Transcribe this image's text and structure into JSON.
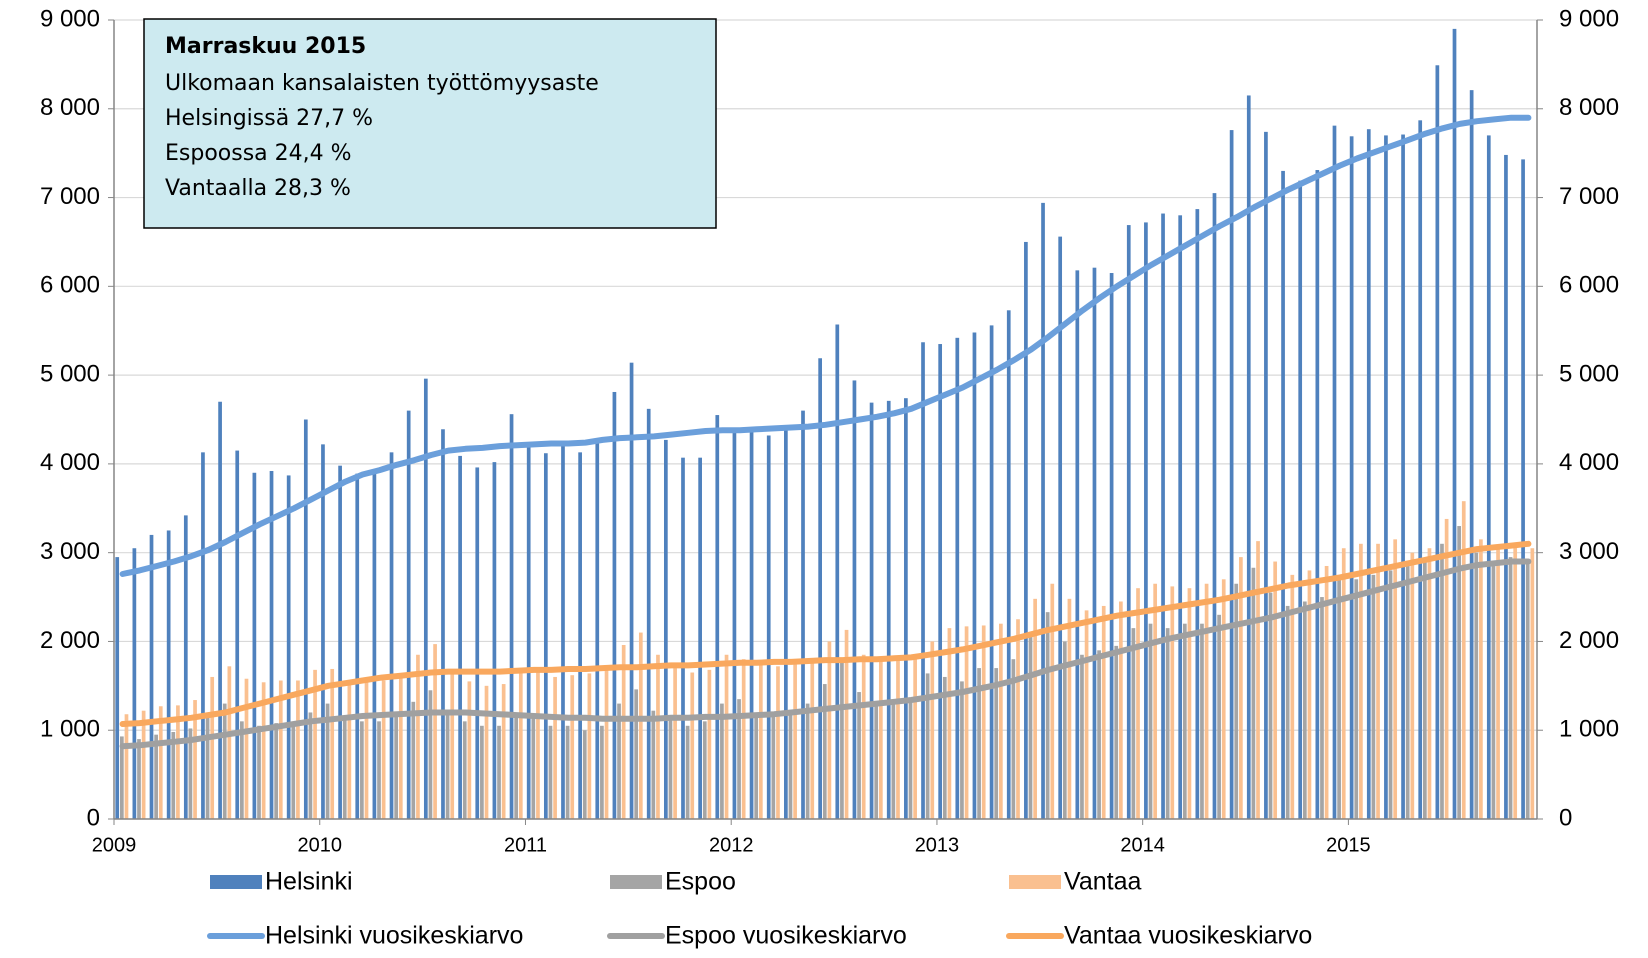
{
  "chart_data": {
    "type": "bar",
    "annotation": {
      "title": "Marraskuu 2015",
      "lines": [
        "Ulkomaan kansalaisten työttömyysaste",
        "Helsingissä 27,7 %",
        "Espoossa 24,4 %",
        "Vantaalla 28,3 %"
      ]
    },
    "categories": [
      "2009",
      null,
      null,
      null,
      null,
      null,
      null,
      null,
      null,
      null,
      null,
      null,
      "2010",
      null,
      null,
      null,
      null,
      null,
      null,
      null,
      null,
      null,
      null,
      null,
      "2011",
      null,
      null,
      null,
      null,
      null,
      null,
      null,
      null,
      null,
      null,
      null,
      "2012",
      null,
      null,
      null,
      null,
      null,
      null,
      null,
      null,
      null,
      null,
      null,
      "2013",
      null,
      null,
      null,
      null,
      null,
      null,
      null,
      null,
      null,
      null,
      null,
      "2014",
      null,
      null,
      null,
      null,
      null,
      null,
      null,
      null,
      null,
      null,
      null,
      "2015",
      null,
      null,
      null,
      null,
      null,
      null,
      null,
      null,
      null,
      null
    ],
    "ylim": [
      0,
      9000
    ],
    "yticks": [
      0,
      {
        "value": 1000,
        "label": "1 000"
      },
      {
        "value": 2000,
        "label": "2 000"
      },
      {
        "value": 3000,
        "label": "3 000"
      },
      {
        "value": 4000,
        "label": "4 000"
      },
      {
        "value": 5000,
        "label": "5 000"
      },
      {
        "value": 6000,
        "label": "6 000"
      },
      {
        "value": 7000,
        "label": "7 000"
      },
      {
        "value": 8000,
        "label": "8 000"
      },
      {
        "value": 9000,
        "label": "9 000"
      }
    ],
    "y2lim": [
      0,
      9000
    ],
    "y2ticks": [
      0,
      {
        "value": 1000,
        "label": "1 000"
      },
      {
        "value": 2000,
        "label": "2 000"
      },
      {
        "value": 3000,
        "label": "3 000"
      },
      {
        "value": 4000,
        "label": "4 000"
      },
      {
        "value": 5000,
        "label": "5 000"
      },
      {
        "value": 6000,
        "label": "6 000"
      },
      {
        "value": 7000,
        "label": "7 000"
      },
      {
        "value": 8000,
        "label": "8 000"
      },
      {
        "value": 9000,
        "label": "9 000"
      }
    ],
    "grid": true,
    "series": [
      {
        "name": "Helsinki",
        "type": "bar",
        "color": "#4f81bd",
        "values": [
          2950,
          3050,
          3200,
          3250,
          3420,
          4130,
          4700,
          4150,
          3900,
          3920,
          3870,
          4500,
          4220,
          3980,
          3890,
          3900,
          4130,
          4600,
          4960,
          4390,
          4090,
          3960,
          4020,
          4560,
          4220,
          4120,
          4220,
          4130,
          4280,
          4810,
          5140,
          4620,
          4270,
          4070,
          4070,
          4550,
          4400,
          4390,
          4320,
          4420,
          4600,
          5190,
          5570,
          4940,
          4690,
          4710,
          4740,
          5370,
          5350,
          5420,
          5480,
          5560,
          5730,
          6500,
          6940,
          6560,
          6180,
          6210,
          6150,
          6690,
          6720,
          6820,
          6800,
          6870,
          7050,
          7760,
          8150,
          7740,
          7300,
          7190,
          7310,
          7810,
          7690,
          7770,
          7700,
          7710,
          7870,
          8490,
          8900,
          8210,
          7700,
          7480,
          7430
        ]
      },
      {
        "name": "Espoo",
        "type": "bar",
        "color": "#a5a5a5",
        "values": [
          930,
          900,
          950,
          980,
          1020,
          1180,
          1300,
          1100,
          1050,
          1080,
          1050,
          1200,
          1300,
          1150,
          1100,
          1100,
          1150,
          1320,
          1450,
          1200,
          1100,
          1050,
          1050,
          1150,
          1150,
          1050,
          1050,
          1000,
          1050,
          1300,
          1460,
          1220,
          1150,
          1050,
          1100,
          1300,
          1350,
          1200,
          1150,
          1200,
          1300,
          1520,
          1780,
          1430,
          1300,
          1300,
          1350,
          1640,
          1600,
          1550,
          1700,
          1700,
          1800,
          2100,
          2330,
          2000,
          1850,
          1900,
          1950,
          2150,
          2200,
          2150,
          2200,
          2200,
          2300,
          2650,
          2830,
          2550,
          2400,
          2450,
          2500,
          2700,
          2700,
          2750,
          2800,
          2850,
          2900,
          3100,
          3300,
          3000,
          2900,
          2950,
          2900
        ]
      },
      {
        "name": "Vantaa",
        "type": "bar",
        "color": "#fac090",
        "values": [
          1180,
          1220,
          1270,
          1280,
          1340,
          1600,
          1720,
          1580,
          1540,
          1560,
          1560,
          1680,
          1690,
          1560,
          1560,
          1560,
          1640,
          1850,
          1970,
          1650,
          1550,
          1500,
          1520,
          1700,
          1680,
          1600,
          1620,
          1640,
          1700,
          1960,
          2100,
          1850,
          1700,
          1650,
          1680,
          1850,
          1800,
          1750,
          1720,
          1740,
          1800,
          2000,
          2130,
          1850,
          1800,
          1800,
          1850,
          2000,
          2150,
          2170,
          2180,
          2200,
          2250,
          2480,
          2650,
          2480,
          2350,
          2400,
          2450,
          2600,
          2650,
          2620,
          2600,
          2650,
          2700,
          2950,
          3130,
          2900,
          2750,
          2800,
          2850,
          3050,
          3100,
          3100,
          3150,
          3000,
          3050,
          3380,
          3580,
          3150,
          3050,
          3100,
          3050
        ]
      },
      {
        "name": "Helsinki vuosikeskiarvo",
        "type": "line",
        "axis": "y2",
        "color": "#6b9fdb",
        "values": [
          2760,
          2800,
          2850,
          2900,
          2960,
          3030,
          3120,
          3220,
          3320,
          3410,
          3500,
          3600,
          3700,
          3800,
          3880,
          3930,
          3990,
          4040,
          4100,
          4150,
          4170,
          4180,
          4200,
          4210,
          4220,
          4230,
          4230,
          4240,
          4270,
          4290,
          4300,
          4310,
          4330,
          4350,
          4370,
          4380,
          4380,
          4390,
          4400,
          4410,
          4420,
          4440,
          4470,
          4500,
          4530,
          4570,
          4620,
          4700,
          4780,
          4860,
          4960,
          5060,
          5170,
          5290,
          5430,
          5580,
          5730,
          5870,
          6000,
          6120,
          6240,
          6350,
          6460,
          6570,
          6680,
          6780,
          6890,
          6990,
          7090,
          7180,
          7270,
          7360,
          7440,
          7510,
          7580,
          7650,
          7720,
          7780,
          7830,
          7860,
          7880,
          7900,
          7900
        ]
      },
      {
        "name": "Espoo vuosikeskiarvo",
        "type": "line",
        "axis": "y2",
        "color": "#a0a0a0",
        "values": [
          820,
          830,
          850,
          870,
          890,
          920,
          950,
          980,
          1010,
          1040,
          1070,
          1100,
          1120,
          1140,
          1160,
          1170,
          1180,
          1190,
          1200,
          1200,
          1200,
          1190,
          1180,
          1170,
          1160,
          1150,
          1140,
          1140,
          1130,
          1130,
          1130,
          1130,
          1140,
          1140,
          1150,
          1150,
          1160,
          1170,
          1180,
          1200,
          1220,
          1240,
          1260,
          1280,
          1300,
          1320,
          1340,
          1370,
          1400,
          1430,
          1470,
          1510,
          1560,
          1620,
          1680,
          1730,
          1780,
          1830,
          1880,
          1930,
          1980,
          2030,
          2070,
          2110,
          2150,
          2190,
          2230,
          2270,
          2320,
          2370,
          2420,
          2470,
          2520,
          2570,
          2620,
          2670,
          2720,
          2770,
          2820,
          2860,
          2880,
          2900,
          2900
        ]
      },
      {
        "name": "Vantaa vuosikeskiarvo",
        "type": "line",
        "axis": "y2",
        "color": "#f9a85e",
        "values": [
          1070,
          1080,
          1100,
          1120,
          1140,
          1170,
          1200,
          1250,
          1300,
          1350,
          1400,
          1450,
          1500,
          1530,
          1560,
          1590,
          1610,
          1630,
          1650,
          1660,
          1660,
          1660,
          1660,
          1670,
          1680,
          1680,
          1690,
          1690,
          1700,
          1710,
          1710,
          1720,
          1730,
          1730,
          1740,
          1750,
          1760,
          1760,
          1770,
          1770,
          1780,
          1790,
          1790,
          1800,
          1800,
          1810,
          1820,
          1850,
          1880,
          1910,
          1950,
          1990,
          2030,
          2080,
          2130,
          2170,
          2210,
          2250,
          2290,
          2320,
          2350,
          2380,
          2410,
          2440,
          2470,
          2510,
          2550,
          2590,
          2630,
          2660,
          2690,
          2720,
          2760,
          2800,
          2840,
          2880,
          2920,
          2960,
          3000,
          3040,
          3060,
          3080,
          3100
        ]
      }
    ]
  }
}
